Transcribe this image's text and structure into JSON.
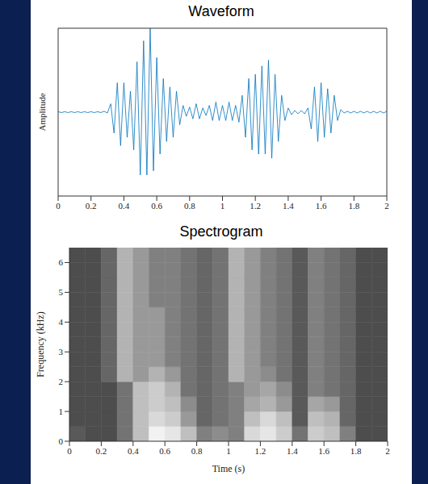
{
  "chart_data": [
    {
      "type": "line",
      "title": "Waveform",
      "y_label": "Amplitude",
      "color": "#0072bd",
      "tick_labels": "x",
      "xlim": [
        0,
        2
      ],
      "ylim": [
        -1,
        1
      ],
      "xticks": [
        0,
        0.2,
        0.4,
        0.6,
        0.8,
        1,
        1.2,
        1.4,
        1.6,
        1.8,
        2
      ],
      "x": [
        0,
        0.02,
        0.04,
        0.06,
        0.08,
        0.1,
        0.12,
        0.14,
        0.16,
        0.18,
        0.2,
        0.22,
        0.24,
        0.26,
        0.28,
        0.3,
        0.32,
        0.34,
        0.36,
        0.38,
        0.4,
        0.42,
        0.44,
        0.46,
        0.48,
        0.5,
        0.52,
        0.54,
        0.56,
        0.58,
        0.6,
        0.62,
        0.64,
        0.66,
        0.68,
        0.7,
        0.72,
        0.74,
        0.76,
        0.78,
        0.8,
        0.82,
        0.84,
        0.86,
        0.88,
        0.9,
        0.92,
        0.94,
        0.96,
        0.98,
        1,
        1.02,
        1.04,
        1.06,
        1.08,
        1.1,
        1.12,
        1.14,
        1.16,
        1.18,
        1.2,
        1.22,
        1.24,
        1.26,
        1.28,
        1.3,
        1.32,
        1.34,
        1.36,
        1.38,
        1.4,
        1.42,
        1.44,
        1.46,
        1.48,
        1.5,
        1.52,
        1.54,
        1.56,
        1.58,
        1.6,
        1.62,
        1.64,
        1.66,
        1.68,
        1.7,
        1.72,
        1.74,
        1.76,
        1.78,
        1.8,
        1.82,
        1.84,
        1.86,
        1.88,
        1.9,
        1.92,
        1.94,
        1.96,
        1.98,
        2
      ],
      "values": [
        0.005,
        -0.005,
        0.005,
        -0.005,
        0.005,
        -0.005,
        0.005,
        -0.005,
        0.005,
        -0.005,
        0.005,
        -0.005,
        0.005,
        -0.005,
        0.01,
        -0.01,
        0.1,
        -0.25,
        0.35,
        -0.4,
        0.35,
        -0.3,
        0.25,
        -0.45,
        0.6,
        -0.75,
        0.85,
        -0.75,
        1,
        -0.7,
        0.65,
        -0.5,
        0.4,
        -0.35,
        0.3,
        -0.3,
        0.25,
        -0.15,
        0.08,
        -0.05,
        0.06,
        -0.08,
        0.1,
        -0.08,
        0.05,
        -0.04,
        0.08,
        -0.1,
        0.12,
        -0.1,
        0.08,
        -0.1,
        0.12,
        -0.1,
        0.08,
        -0.12,
        0.2,
        -0.3,
        0.4,
        -0.45,
        0.45,
        -0.5,
        0.55,
        -0.5,
        0.62,
        -0.55,
        0.45,
        -0.35,
        0.2,
        -0.1,
        0.05,
        -0.03,
        0.02,
        -0.02,
        0.02,
        -0.02,
        0.05,
        -0.2,
        0.3,
        -0.35,
        0.35,
        -0.3,
        0.28,
        -0.25,
        0.2,
        -0.1,
        0.03,
        -0.01,
        0.01,
        -0.01,
        0.01,
        -0.01,
        0.01,
        -0.01,
        0.01,
        -0.01,
        0.01,
        -0.01,
        0.01,
        -0.01,
        0.01
      ]
    },
    {
      "type": "heatmap",
      "title": "Spectrogram",
      "x_label": "Time (s)",
      "y_label": "Frequency (kHz)",
      "xlim": [
        0,
        2
      ],
      "ylim": [
        0,
        6.5
      ],
      "xticks": [
        0,
        0.2,
        0.4,
        0.6,
        0.8,
        1,
        1.2,
        1.4,
        1.6,
        1.8,
        2
      ],
      "yticks": [
        0,
        1,
        2,
        3,
        4,
        5,
        6
      ],
      "x_bins": [
        0,
        0.1,
        0.2,
        0.3,
        0.4,
        0.5,
        0.6,
        0.7,
        0.8,
        0.9,
        1,
        1.1,
        1.2,
        1.3,
        1.4,
        1.5,
        1.6,
        1.7,
        1.8,
        1.9,
        2
      ],
      "y_bins": [
        0,
        0.5,
        1,
        1.5,
        2,
        2.5,
        3,
        3.5,
        4,
        4.5,
        5,
        5.5,
        6,
        6.5
      ],
      "cells": [
        [
          0.35,
          0.3,
          0.3,
          0.45,
          0.75,
          0.95,
          0.9,
          0.75,
          0.5,
          0.55,
          0.5,
          0.85,
          0.9,
          0.8,
          0.45,
          0.8,
          0.75,
          0.5,
          0.3,
          0.3
        ],
        [
          0.3,
          0.3,
          0.3,
          0.45,
          0.75,
          0.85,
          0.8,
          0.6,
          0.4,
          0.45,
          0.5,
          0.75,
          0.85,
          0.75,
          0.35,
          0.75,
          0.7,
          0.4,
          0.3,
          0.3
        ],
        [
          0.3,
          0.3,
          0.3,
          0.45,
          0.75,
          0.8,
          0.75,
          0.55,
          0.4,
          0.45,
          0.5,
          0.65,
          0.7,
          0.6,
          0.35,
          0.65,
          0.6,
          0.4,
          0.3,
          0.3
        ],
        [
          0.3,
          0.3,
          0.3,
          0.45,
          0.75,
          0.8,
          0.7,
          0.45,
          0.4,
          0.45,
          0.5,
          0.6,
          0.65,
          0.55,
          0.35,
          0.5,
          0.45,
          0.4,
          0.3,
          0.3
        ],
        [
          0.3,
          0.3,
          0.4,
          0.7,
          0.6,
          0.7,
          0.6,
          0.45,
          0.4,
          0.45,
          0.7,
          0.6,
          0.55,
          0.45,
          0.35,
          0.5,
          0.45,
          0.4,
          0.3,
          0.3
        ],
        [
          0.3,
          0.3,
          0.4,
          0.7,
          0.6,
          0.6,
          0.5,
          0.45,
          0.4,
          0.45,
          0.7,
          0.6,
          0.5,
          0.45,
          0.35,
          0.5,
          0.45,
          0.4,
          0.3,
          0.3
        ],
        [
          0.3,
          0.3,
          0.4,
          0.7,
          0.6,
          0.6,
          0.5,
          0.45,
          0.4,
          0.45,
          0.7,
          0.6,
          0.5,
          0.45,
          0.35,
          0.5,
          0.45,
          0.4,
          0.3,
          0.3
        ],
        [
          0.3,
          0.3,
          0.4,
          0.7,
          0.6,
          0.6,
          0.5,
          0.45,
          0.4,
          0.45,
          0.7,
          0.6,
          0.5,
          0.45,
          0.35,
          0.5,
          0.45,
          0.4,
          0.3,
          0.3
        ],
        [
          0.3,
          0.3,
          0.4,
          0.7,
          0.6,
          0.6,
          0.5,
          0.45,
          0.4,
          0.45,
          0.7,
          0.6,
          0.5,
          0.45,
          0.35,
          0.5,
          0.45,
          0.4,
          0.3,
          0.3
        ],
        [
          0.3,
          0.3,
          0.4,
          0.7,
          0.6,
          0.5,
          0.5,
          0.45,
          0.4,
          0.45,
          0.7,
          0.6,
          0.5,
          0.45,
          0.35,
          0.5,
          0.45,
          0.4,
          0.3,
          0.3
        ],
        [
          0.3,
          0.3,
          0.4,
          0.7,
          0.6,
          0.5,
          0.5,
          0.45,
          0.4,
          0.45,
          0.7,
          0.6,
          0.5,
          0.45,
          0.35,
          0.5,
          0.45,
          0.4,
          0.3,
          0.3
        ],
        [
          0.3,
          0.3,
          0.4,
          0.7,
          0.6,
          0.5,
          0.5,
          0.45,
          0.4,
          0.45,
          0.7,
          0.6,
          0.5,
          0.45,
          0.35,
          0.5,
          0.45,
          0.4,
          0.3,
          0.3
        ],
        [
          0.3,
          0.3,
          0.4,
          0.7,
          0.6,
          0.5,
          0.5,
          0.45,
          0.4,
          0.45,
          0.7,
          0.6,
          0.5,
          0.45,
          0.35,
          0.5,
          0.45,
          0.4,
          0.3,
          0.3
        ]
      ]
    }
  ]
}
